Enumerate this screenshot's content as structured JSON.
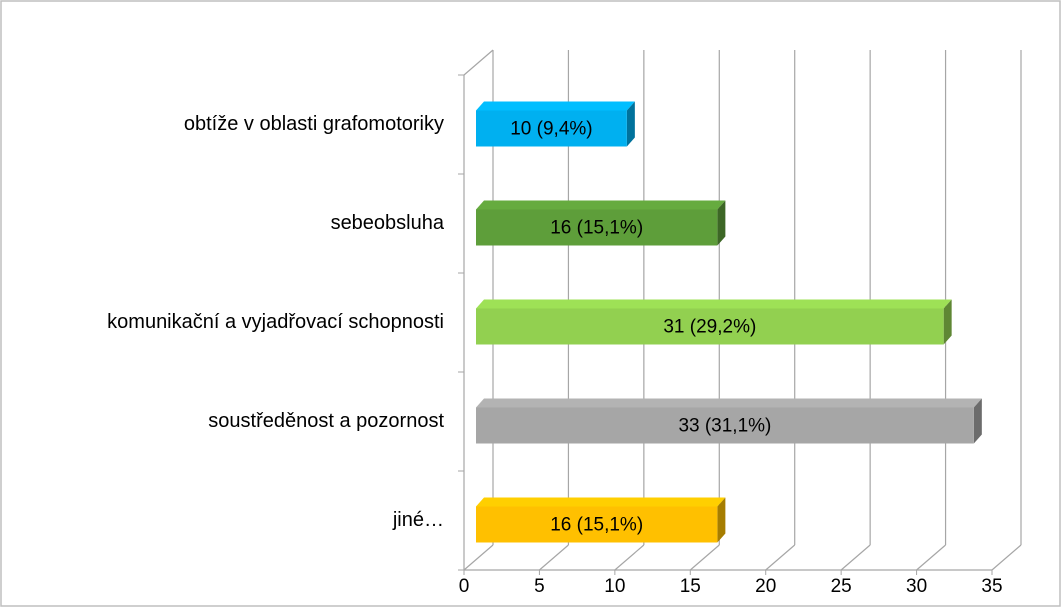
{
  "chart_data": {
    "type": "bar",
    "orientation": "horizontal",
    "categories": [
      "obtíže v oblasti grafomotoriky",
      "sebeobsluha",
      "komunikační a vyjadřovací schopnosti",
      "soustředěnost a pozornost",
      "jiné…"
    ],
    "values": [
      10,
      16,
      31,
      33,
      16
    ],
    "value_labels": [
      "10 (9,4%)",
      "16 (15,1%)",
      "31 (29,2%)",
      "33 (31,1%)",
      "16 (15,1%)"
    ],
    "colors": [
      "#00b0f0",
      "#5e9e3a",
      "#92d050",
      "#a6a6a6",
      "#ffc000"
    ],
    "xlim": [
      0,
      35
    ],
    "xticks": [
      0,
      5,
      10,
      15,
      20,
      25,
      30,
      35
    ],
    "grid": true
  }
}
